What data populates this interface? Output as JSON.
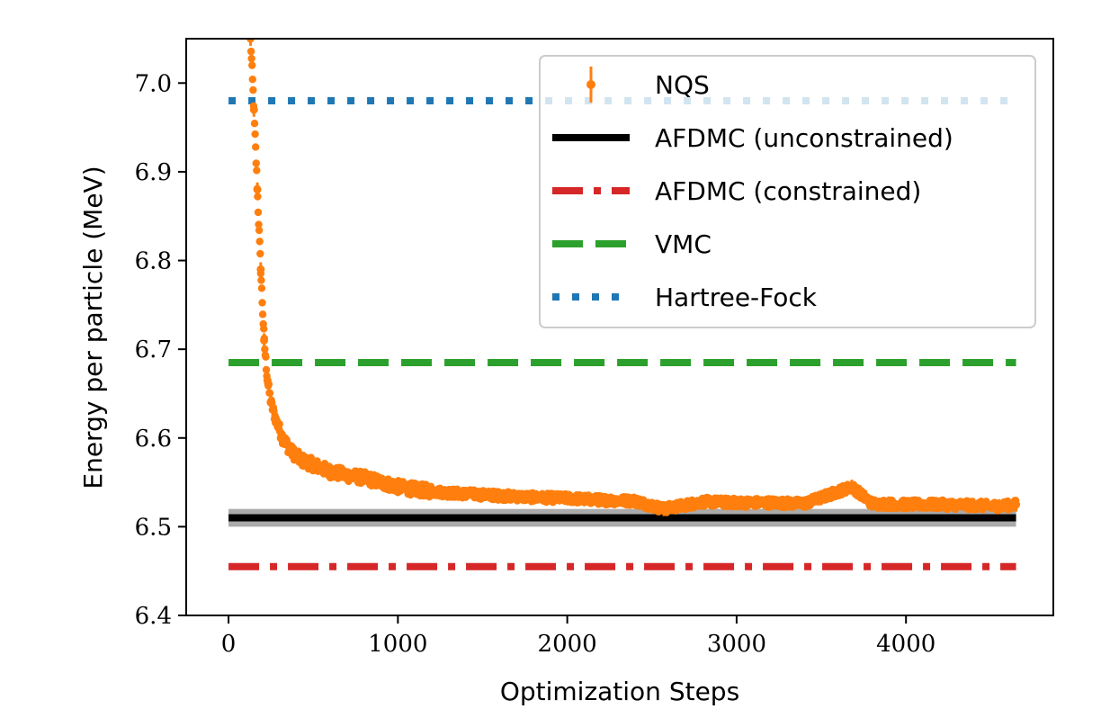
{
  "chart_data": {
    "type": "line",
    "xlabel": "Optimization Steps",
    "ylabel": "Energy per particle (MeV)",
    "xlim": [
      -250,
      4870
    ],
    "ylim": [
      6.4,
      7.05
    ],
    "x_ticks": [
      0,
      1000,
      2000,
      3000,
      4000
    ],
    "y_ticks": [
      6.4,
      6.5,
      6.6,
      6.7,
      6.8,
      6.9,
      7.0
    ],
    "grid": false,
    "legend_position": "top-right",
    "colors": {
      "nqs": "#ff7f0e",
      "afdmc_unconstrained": "#000000",
      "afdmc_unconstrained_band": "#aaaaaa",
      "afdmc_constrained": "#d62728",
      "vmc": "#2ca02c",
      "hartree_fock": "#1f77b4"
    },
    "series": [
      {
        "name": "NQS",
        "style": "points-with-errorbars",
        "x": [
          130,
          150,
          170,
          190,
          210,
          230,
          250,
          280,
          320,
          370,
          430,
          500,
          600,
          700,
          800,
          900,
          1000,
          1100,
          1200,
          1300,
          1400,
          1500,
          1600,
          1800,
          2000,
          2200,
          2400,
          2570,
          2800,
          3000,
          3200,
          3400,
          3680,
          3800,
          4000,
          4200,
          4400,
          4550,
          4650
        ],
        "y": [
          7.05,
          6.97,
          6.88,
          6.79,
          6.71,
          6.665,
          6.64,
          6.62,
          6.6,
          6.585,
          6.575,
          6.57,
          6.562,
          6.558,
          6.555,
          6.55,
          6.545,
          6.542,
          6.54,
          6.538,
          6.537,
          6.536,
          6.535,
          6.533,
          6.532,
          6.53,
          6.529,
          6.52,
          6.528,
          6.527,
          6.527,
          6.526,
          6.545,
          6.526,
          6.525,
          6.525,
          6.524,
          6.523,
          6.525
        ]
      },
      {
        "name": "AFDMC (unconstrained)",
        "style": "solid",
        "x": [
          0,
          4650
        ],
        "y": [
          6.51,
          6.51
        ],
        "band": [
          6.5,
          6.52
        ]
      },
      {
        "name": "AFDMC (constrained)",
        "style": "dashdot",
        "x": [
          0,
          4650
        ],
        "y": [
          6.455,
          6.455
        ]
      },
      {
        "name": "VMC",
        "style": "dashed",
        "x": [
          0,
          4650
        ],
        "y": [
          6.685,
          6.685
        ]
      },
      {
        "name": "Hartree-Fock",
        "style": "dotted",
        "x": [
          0,
          4650
        ],
        "y": [
          6.98,
          6.98
        ]
      }
    ]
  }
}
